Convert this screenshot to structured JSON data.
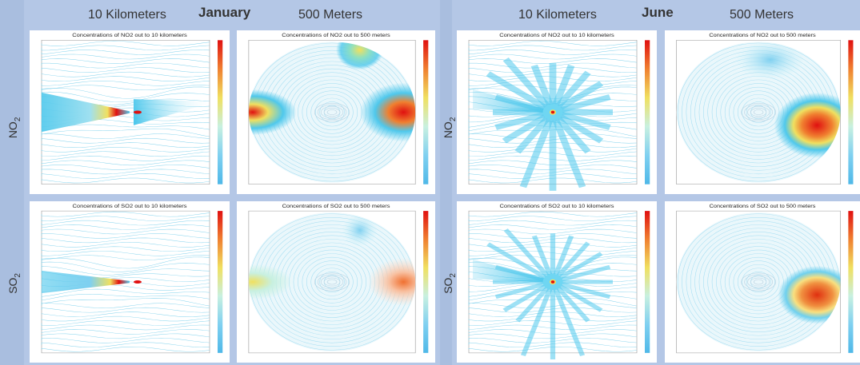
{
  "months": {
    "left": "January",
    "right": "June"
  },
  "column_headers": {
    "km": "10 Kilometers",
    "m": "500 Meters"
  },
  "rows": {
    "no2": {
      "base": "NO",
      "sub": "2"
    },
    "so2": {
      "base": "SO",
      "sub": "2"
    }
  },
  "panel_titles": {
    "jan_no2_km": "Concentrations of NO2 out to 10 kilometers",
    "jan_no2_m": "Concentrations of NO2 out to 500 meters",
    "jan_so2_km": "Concentrations of SO2 out to 10 kilometers",
    "jan_so2_m": "Concentrations of SO2 out to 500 meters",
    "jun_no2_km": "Concentrations of NO2 out to 10 kilometers",
    "jun_no2_m": "Concentrations of NO2 out to 500 meters",
    "jun_so2_km": "Concentrations of SO2 out to 10 kilometers",
    "jun_so2_m": "Concentrations of SO2 out to 500 meters"
  },
  "colors": {
    "background": "#a9bedf",
    "colormap": [
      "#4fb8e8",
      "#7fd0f0",
      "#c8f0e0",
      "#f0e060",
      "#f08030",
      "#e01010"
    ]
  }
}
